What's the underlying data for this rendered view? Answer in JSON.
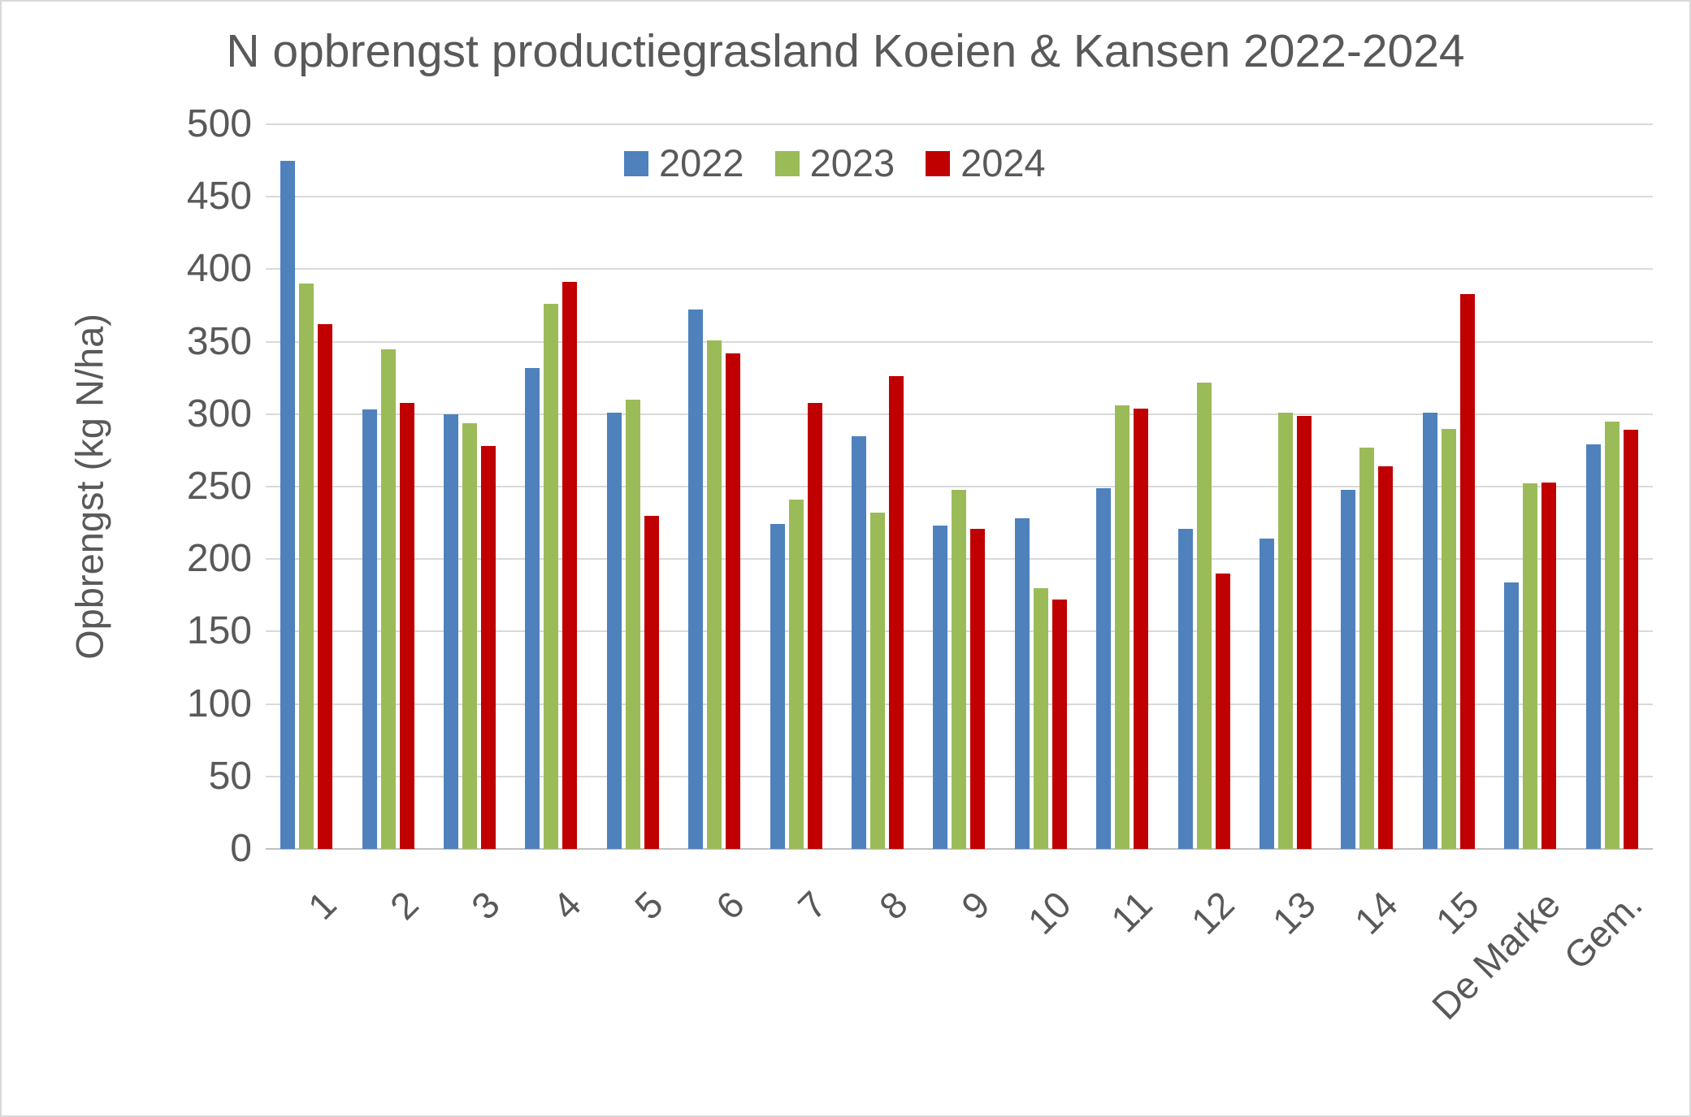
{
  "chart_data": {
    "type": "bar",
    "title": "N opbrengst productiegrasland Koeien & Kansen 2022-2024",
    "ylabel": "Opbrengst (kg N/ha)",
    "xlabel": "",
    "ylim": [
      0,
      500
    ],
    "ytick_step": 50,
    "grid": true,
    "legend_position": "top-center-inside",
    "categories": [
      "1",
      "2",
      "3",
      "4",
      "5",
      "6",
      "7",
      "8",
      "9",
      "10",
      "11",
      "12",
      "13",
      "14",
      "15",
      "De Marke",
      "Gem."
    ],
    "series": [
      {
        "name": "2022",
        "color": "#4f81bd",
        "values": [
          475,
          303,
          300,
          332,
          301,
          372,
          224,
          285,
          223,
          228,
          249,
          221,
          214,
          248,
          301,
          184,
          279
        ]
      },
      {
        "name": "2023",
        "color": "#9bbb59",
        "values": [
          390,
          345,
          294,
          376,
          310,
          351,
          241,
          232,
          248,
          180,
          306,
          322,
          301,
          277,
          290,
          252,
          295
        ]
      },
      {
        "name": "2024",
        "color": "#c00000",
        "values": [
          362,
          308,
          278,
          391,
          230,
          342,
          308,
          326,
          221,
          172,
          304,
          190,
          299,
          264,
          383,
          253,
          289
        ]
      }
    ]
  },
  "colors": {
    "text": "#595959",
    "gridline": "#d9d9d9",
    "axis_line": "#bfbfbf",
    "background": "#ffffff",
    "border": "#d9d9d9"
  }
}
